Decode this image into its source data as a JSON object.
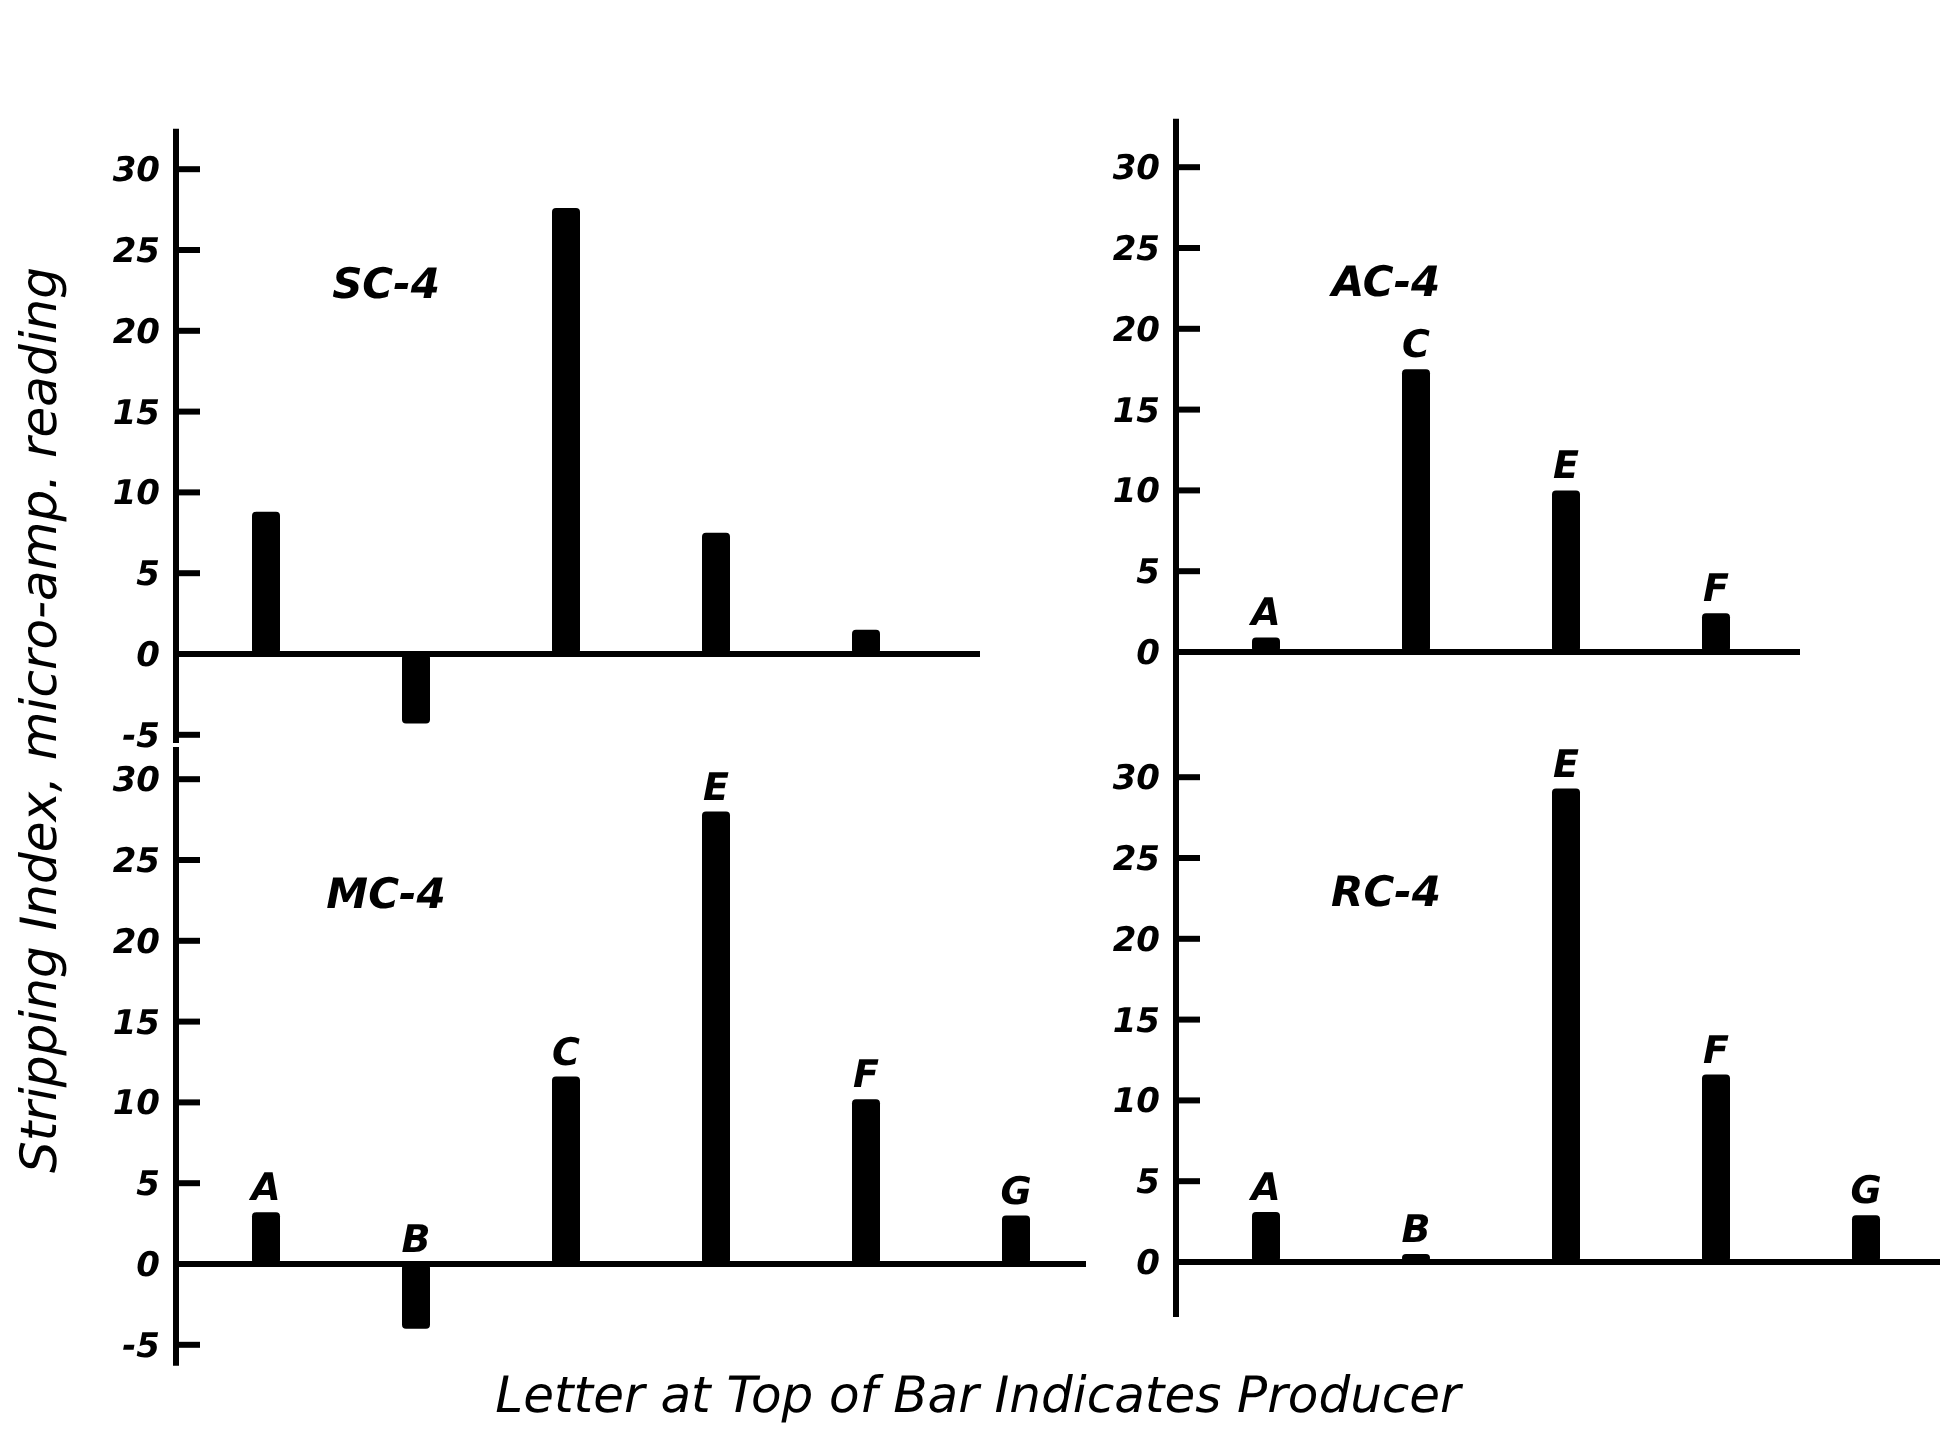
{
  "chart_data": [
    {
      "type": "bar",
      "title": "SC-4",
      "ylabel": "Stripping Index, micro-amp. reading",
      "categories": [
        null,
        null,
        null,
        null,
        null
      ],
      "values": [
        8.8,
        -4.3,
        27.6,
        7.5,
        1.5
      ],
      "color": "#000000",
      "ylim": [
        -5.5,
        32.5
      ],
      "yticks": [
        -5,
        0,
        5,
        10,
        15,
        20,
        25,
        30
      ]
    },
    {
      "type": "bar",
      "title": "AC-4",
      "categories": [
        "A",
        "C",
        "E",
        "F"
      ],
      "values": [
        0.9,
        17.5,
        10,
        2.4
      ],
      "color": "#000000",
      "ylim": [
        -5,
        33
      ],
      "yticks": [
        0,
        5,
        10,
        15,
        20,
        25,
        30
      ]
    },
    {
      "type": "bar",
      "title": "MC-4",
      "xlabel": "Letter at Top of Bar Indicates Producer",
      "categories": [
        "A",
        "B",
        "C",
        "E",
        "F",
        "G"
      ],
      "values": [
        3.2,
        -4,
        11.6,
        28,
        10.2,
        3
      ],
      "color": "#000000",
      "ylim": [
        -6.3,
        32
      ],
      "yticks": [
        -5,
        0,
        5,
        10,
        15,
        20,
        25,
        30
      ]
    },
    {
      "type": "bar",
      "title": "RC-4",
      "categories": [
        "A",
        "B",
        "E",
        "F",
        "G"
      ],
      "values": [
        3.1,
        0.5,
        29.3,
        11.6,
        2.9
      ],
      "color": "#000000",
      "ylim": [
        -3.4,
        33.5
      ],
      "yticks": [
        0,
        5,
        10,
        15,
        20,
        25,
        30
      ]
    }
  ]
}
